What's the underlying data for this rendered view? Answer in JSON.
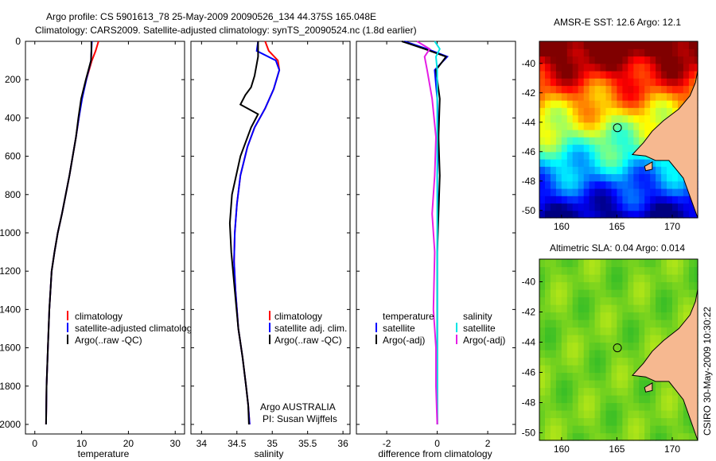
{
  "header": {
    "line1": "Argo profile: CS 5901613_78 25-May-2009 20090526_134 44.375S 165.048E",
    "line2": "Climatology: CARS2009. Satellite-adjusted climatology: synTS_20090524.nc (1.8d earlier)"
  },
  "footer": {
    "agency": "Argo AUSTRALIA",
    "pi": "PI: Susan Wijffels",
    "stamp": "CSIRO  30-May-2009 10:30:22"
  },
  "legend_temperature": {
    "items": [
      "climatology",
      "satellite-adjusted climatology",
      "Argo(..raw -QC)"
    ]
  },
  "legend_salinity": {
    "items": [
      "climatology",
      "satellite adj. clim.",
      "Argo(..raw -QC)"
    ]
  },
  "legend_difference": {
    "left_title": "temperature",
    "left_items": [
      "satellite",
      "Argo(-adj)"
    ],
    "right_title": "salinity",
    "right_items": [
      "satellite",
      "Argo(-adj)"
    ]
  },
  "colors": {
    "climatology": "#ff0000",
    "satellite": "#0000ff",
    "argo": "#000000",
    "sal_satellite": "#00e5e5",
    "sal_argo": "#e51ee5",
    "land": "#f6b890",
    "coast": "#000000"
  },
  "chart_data": [
    {
      "type": "line",
      "xlabel": "temperature",
      "ylabel": "",
      "xlim": [
        -2,
        32
      ],
      "ylim": [
        2050,
        0
      ],
      "xticks": [
        0,
        10,
        20,
        30
      ],
      "yticks": [
        0,
        200,
        400,
        600,
        800,
        1000,
        1200,
        1400,
        1600,
        1800,
        2000
      ],
      "series": [
        {
          "name": "climatology",
          "color": "#ff0000",
          "x": [
            13.6,
            13.0,
            12.2,
            11.0,
            10.0,
            9.4,
            8.8,
            8.1,
            7.4,
            6.6,
            5.8,
            4.9,
            4.2,
            3.6,
            3.1,
            2.8,
            2.5,
            2.4
          ],
          "y": [
            0,
            50,
            100,
            200,
            300,
            400,
            500,
            600,
            700,
            800,
            900,
            1000,
            1100,
            1200,
            1400,
            1600,
            1800,
            2000
          ]
        },
        {
          "name": "satellite-adjusted climatology",
          "color": "#0000ff",
          "x": [
            12.2,
            12.1,
            12.0,
            11.0,
            10.1,
            9.4,
            8.8,
            8.1,
            7.4,
            6.6,
            5.8,
            4.9,
            4.2,
            3.6,
            3.1,
            2.8,
            2.5,
            2.4
          ],
          "y": [
            0,
            50,
            100,
            200,
            300,
            400,
            500,
            600,
            700,
            800,
            900,
            1000,
            1100,
            1200,
            1400,
            1600,
            1800,
            2000
          ]
        },
        {
          "name": "Argo(..raw -QC)",
          "color": "#000000",
          "x": [
            12.1,
            12.1,
            12.0,
            10.9,
            9.9,
            9.3,
            8.8,
            8.1,
            7.4,
            6.6,
            5.8,
            4.9,
            4.2,
            3.6,
            3.1,
            2.8,
            2.5,
            2.4
          ],
          "y": [
            0,
            50,
            100,
            200,
            300,
            400,
            500,
            600,
            700,
            800,
            900,
            1000,
            1100,
            1200,
            1400,
            1600,
            1800,
            2000
          ]
        }
      ]
    },
    {
      "type": "line",
      "xlabel": "salinity",
      "ylabel": "",
      "xlim": [
        33.85,
        36.1
      ],
      "ylim": [
        2050,
        0
      ],
      "xticks": [
        34,
        34.5,
        35,
        35.5,
        36
      ],
      "xtick_labels": [
        "34",
        "34.5",
        "35",
        "35.5",
        "36"
      ],
      "yticks": [],
      "series": [
        {
          "name": "climatology",
          "color": "#ff0000",
          "x": [
            34.9,
            34.95,
            35.08,
            35.1,
            35.02,
            34.9,
            34.75,
            34.65,
            34.55,
            34.5,
            34.47,
            34.46,
            34.48,
            34.52,
            34.58,
            34.63,
            34.66,
            34.68
          ],
          "y": [
            0,
            50,
            100,
            150,
            250,
            350,
            450,
            550,
            700,
            850,
            1000,
            1150,
            1300,
            1500,
            1650,
            1800,
            1900,
            2000
          ]
        },
        {
          "name": "satellite adj. clim.",
          "color": "#0000ff",
          "x": [
            34.8,
            34.78,
            35.05,
            35.1,
            35.02,
            34.9,
            34.75,
            34.65,
            34.55,
            34.5,
            34.47,
            34.46,
            34.48,
            34.52,
            34.58,
            34.63,
            34.66,
            34.68
          ],
          "y": [
            0,
            50,
            100,
            150,
            250,
            350,
            450,
            550,
            700,
            850,
            1000,
            1150,
            1300,
            1500,
            1650,
            1800,
            1900,
            2000
          ]
        },
        {
          "name": "Argo(..raw -QC)",
          "color": "#000000",
          "x": [
            34.8,
            34.8,
            34.75,
            34.7,
            34.62,
            34.55,
            34.8,
            34.7,
            34.55,
            34.43,
            34.4,
            34.42,
            34.47,
            34.52,
            34.58,
            34.63,
            34.66,
            34.67
          ],
          "y": [
            0,
            80,
            180,
            240,
            280,
            330,
            380,
            450,
            600,
            800,
            950,
            1100,
            1300,
            1500,
            1650,
            1800,
            1900,
            2000
          ]
        }
      ]
    },
    {
      "type": "line",
      "xlabel": "difference from climatology",
      "ylabel": "",
      "xlim": [
        -3.2,
        3.1
      ],
      "ylim": [
        2050,
        0
      ],
      "xticks": [
        -2,
        0,
        2
      ],
      "yticks": [],
      "series": [
        {
          "name": "temperature satellite",
          "color": "#0000ff",
          "x": [
            -1.3,
            -0.4,
            0.4,
            -0.1,
            0.0,
            0.05,
            0.0,
            0.02,
            0.0,
            0.0,
            0.0,
            0.0,
            0.0
          ],
          "y": [
            0,
            40,
            80,
            150,
            300,
            500,
            700,
            900,
            1100,
            1400,
            1600,
            1800,
            2000
          ]
        },
        {
          "name": "temperature Argo(-adj)",
          "color": "#000000",
          "x": [
            -1.4,
            -0.5,
            0.35,
            -0.05,
            0.1,
            0.05,
            0.1,
            0.05,
            0.0,
            0.0,
            0.0,
            0.0,
            0.0
          ],
          "y": [
            0,
            40,
            80,
            150,
            300,
            500,
            700,
            900,
            1100,
            1400,
            1600,
            1800,
            2000
          ]
        },
        {
          "name": "salinity satellite",
          "color": "#00e5e5",
          "x": [
            -0.1,
            0.1,
            -0.05,
            0.0,
            0.0,
            0.0,
            0.0,
            0.0,
            0.0,
            0.0,
            0.0,
            0.0,
            0.0
          ],
          "y": [
            0,
            40,
            80,
            150,
            300,
            500,
            700,
            900,
            1100,
            1400,
            1600,
            1800,
            2000
          ]
        },
        {
          "name": "salinity Argo(-adj)",
          "color": "#e51ee5",
          "x": [
            -0.8,
            -0.3,
            -0.5,
            -0.4,
            -0.2,
            -0.05,
            -0.1,
            -0.2,
            -0.1,
            -0.15,
            -0.05,
            -0.05,
            0.0
          ],
          "y": [
            0,
            40,
            80,
            150,
            300,
            500,
            700,
            900,
            1100,
            1400,
            1600,
            1800,
            2000
          ]
        }
      ]
    },
    {
      "type": "heatmap",
      "title": "AMSR-E SST: 12.6  Argo: 12.1",
      "xlim": [
        158,
        172.3
      ],
      "ylim": [
        -50.5,
        -38.5
      ],
      "xticks": [
        160,
        165,
        170
      ],
      "yticks": [
        -40,
        -42,
        -44,
        -46,
        -48,
        -50
      ],
      "float_position": [
        165.048,
        -44.375
      ],
      "palette": "jet"
    },
    {
      "type": "heatmap",
      "title": "Altimetric SLA: 0.04  Argo: 0.014",
      "xlim": [
        158,
        172.3
      ],
      "ylim": [
        -50.5,
        -38.5
      ],
      "xticks": [
        160,
        165,
        170
      ],
      "yticks": [
        -40,
        -42,
        -44,
        -46,
        -48,
        -50
      ],
      "float_position": [
        165.048,
        -44.375
      ],
      "palette": "green"
    }
  ]
}
